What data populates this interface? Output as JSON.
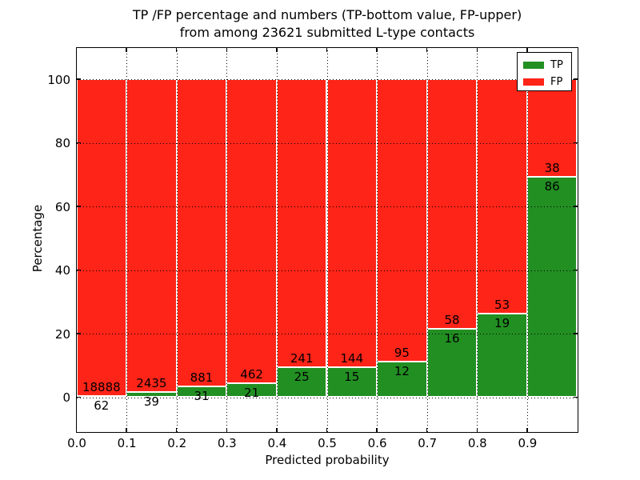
{
  "title": {
    "line1": "TP /FP percentage and numbers (TP-bottom value, FP-upper)",
    "line2": "from among 23621 submitted L-type contacts"
  },
  "axes": {
    "xlabel": "Predicted probability",
    "ylabel": "Percentage",
    "x_ticks": [
      "0.0",
      "0.1",
      "0.2",
      "0.3",
      "0.4",
      "0.5",
      "0.6",
      "0.7",
      "0.8",
      "0.9"
    ],
    "y_ticks": [
      "0",
      "20",
      "40",
      "60",
      "80",
      "100"
    ]
  },
  "legend": {
    "items": [
      {
        "label": "TP",
        "color": "#228f22"
      },
      {
        "label": "FP",
        "color": "#ff2418"
      }
    ]
  },
  "colors": {
    "tp_green": "#228f22",
    "fp_red": "#ff2418",
    "bar_edge": "#ffffff",
    "grid": "#000000",
    "background": "#ffffff"
  },
  "chart_data": {
    "type": "bar",
    "stacked": true,
    "normalized_to_percent": true,
    "title": "TP /FP percentage and numbers (TP-bottom value, FP-upper) from among 23621 submitted L-type contacts",
    "xlabel": "Predicted probability",
    "ylabel": "Percentage",
    "total_contacts": 23621,
    "x_bin_edges": [
      0.0,
      0.1,
      0.2,
      0.3,
      0.4,
      0.5,
      0.6,
      0.7,
      0.8,
      0.9,
      1.0
    ],
    "bins": [
      "0.0-0.1",
      "0.1-0.2",
      "0.2-0.3",
      "0.3-0.4",
      "0.4-0.5",
      "0.5-0.6",
      "0.6-0.7",
      "0.7-0.8",
      "0.8-0.9",
      "0.9-1.0"
    ],
    "series": [
      {
        "name": "TP",
        "color": "#228f22",
        "counts": [
          62,
          39,
          31,
          21,
          25,
          15,
          12,
          16,
          19,
          86
        ]
      },
      {
        "name": "FP",
        "color": "#ff2418",
        "counts": [
          18888,
          2435,
          881,
          462,
          241,
          144,
          95,
          58,
          53,
          38
        ]
      }
    ],
    "tp_percent": [
      0.33,
      1.58,
      3.4,
      4.35,
      9.4,
      9.43,
      11.21,
      21.62,
      26.39,
      69.35
    ],
    "ylim": [
      -11,
      110.5
    ],
    "xlim": [
      0.0,
      1.0
    ],
    "grid": true,
    "grid_style": "dotted",
    "legend_position": "upper right"
  }
}
